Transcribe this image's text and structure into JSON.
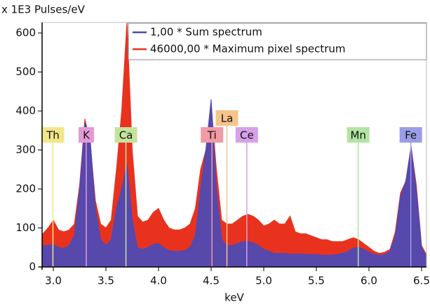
{
  "chart_data": {
    "type": "area",
    "y_label": "x 1E3 Pulses/eV",
    "x_label": "keV",
    "x": [
      2.9,
      2.95,
      3.0,
      3.05,
      3.1,
      3.15,
      3.2,
      3.25,
      3.3,
      3.35,
      3.4,
      3.45,
      3.5,
      3.55,
      3.6,
      3.65,
      3.7,
      3.75,
      3.8,
      3.85,
      3.9,
      3.95,
      4.0,
      4.05,
      4.1,
      4.15,
      4.2,
      4.25,
      4.3,
      4.35,
      4.4,
      4.45,
      4.5,
      4.55,
      4.6,
      4.65,
      4.7,
      4.75,
      4.8,
      4.85,
      4.9,
      4.95,
      5.0,
      5.05,
      5.1,
      5.15,
      5.2,
      5.25,
      5.3,
      5.35,
      5.4,
      5.45,
      5.5,
      5.55,
      5.6,
      5.65,
      5.7,
      5.75,
      5.8,
      5.85,
      5.9,
      5.95,
      6.0,
      6.05,
      6.1,
      6.15,
      6.2,
      6.25,
      6.3,
      6.35,
      6.4,
      6.45,
      6.5,
      6.55
    ],
    "series": [
      {
        "name": "46000,00 * Maximum pixel spectrum",
        "color": "#e8321e",
        "values": [
          85,
          100,
          120,
          95,
          90,
          95,
          110,
          210,
          380,
          320,
          170,
          110,
          100,
          120,
          250,
          400,
          630,
          300,
          130,
          115,
          120,
          140,
          150,
          120,
          100,
          95,
          95,
          100,
          110,
          150,
          250,
          300,
          420,
          250,
          120,
          110,
          110,
          120,
          130,
          135,
          130,
          120,
          105,
          110,
          120,
          110,
          110,
          130,
          90,
          85,
          85,
          80,
          75,
          70,
          70,
          65,
          65,
          65,
          70,
          75,
          70,
          60,
          50,
          40,
          35,
          38,
          45,
          90,
          190,
          220,
          310,
          210,
          55,
          30
        ]
      },
      {
        "name": "1,00 * Sum spectrum",
        "color": "#4a4ab8",
        "values": [
          55,
          55,
          58,
          50,
          48,
          55,
          80,
          200,
          370,
          330,
          150,
          70,
          55,
          70,
          150,
          200,
          265,
          120,
          50,
          45,
          50,
          58,
          60,
          50,
          42,
          40,
          40,
          42,
          50,
          80,
          200,
          300,
          430,
          200,
          70,
          55,
          55,
          60,
          65,
          65,
          62,
          55,
          45,
          40,
          35,
          35,
          35,
          33,
          33,
          33,
          32,
          32,
          32,
          30,
          30,
          30,
          32,
          35,
          40,
          48,
          50,
          45,
          38,
          32,
          30,
          32,
          40,
          80,
          180,
          220,
          305,
          200,
          50,
          25
        ]
      }
    ],
    "elements": [
      {
        "name": "Th",
        "energy": 2.996,
        "color": "#f3e58a"
      },
      {
        "name": "K",
        "energy": 3.313,
        "color": "#e49ad6"
      },
      {
        "name": "Ca",
        "energy": 3.69,
        "color": "#c4e49a"
      },
      {
        "name": "Ti",
        "energy": 4.508,
        "color": "#f29aa6"
      },
      {
        "name": "La",
        "energy": 4.65,
        "color": "#f5c48a"
      },
      {
        "name": "Ce",
        "energy": 4.839,
        "color": "#d7a0e8"
      },
      {
        "name": "Mn",
        "energy": 5.898,
        "color": "#b2e4a2"
      },
      {
        "name": "Fe",
        "energy": 6.398,
        "color": "#9a9ee6"
      }
    ],
    "xlim": [
      2.893,
      6.547
    ],
    "ylim": [
      0,
      627
    ],
    "xticks": [
      {
        "value": 3,
        "label": "3.0"
      },
      3.5,
      {
        "value": 4,
        "label": "4.0"
      },
      4.5,
      {
        "value": 5,
        "label": "5.0"
      },
      5.5,
      {
        "value": 6,
        "label": "6.0"
      },
      6.5
    ],
    "yticks": [
      0,
      100,
      200,
      300,
      400,
      500,
      600
    ]
  }
}
